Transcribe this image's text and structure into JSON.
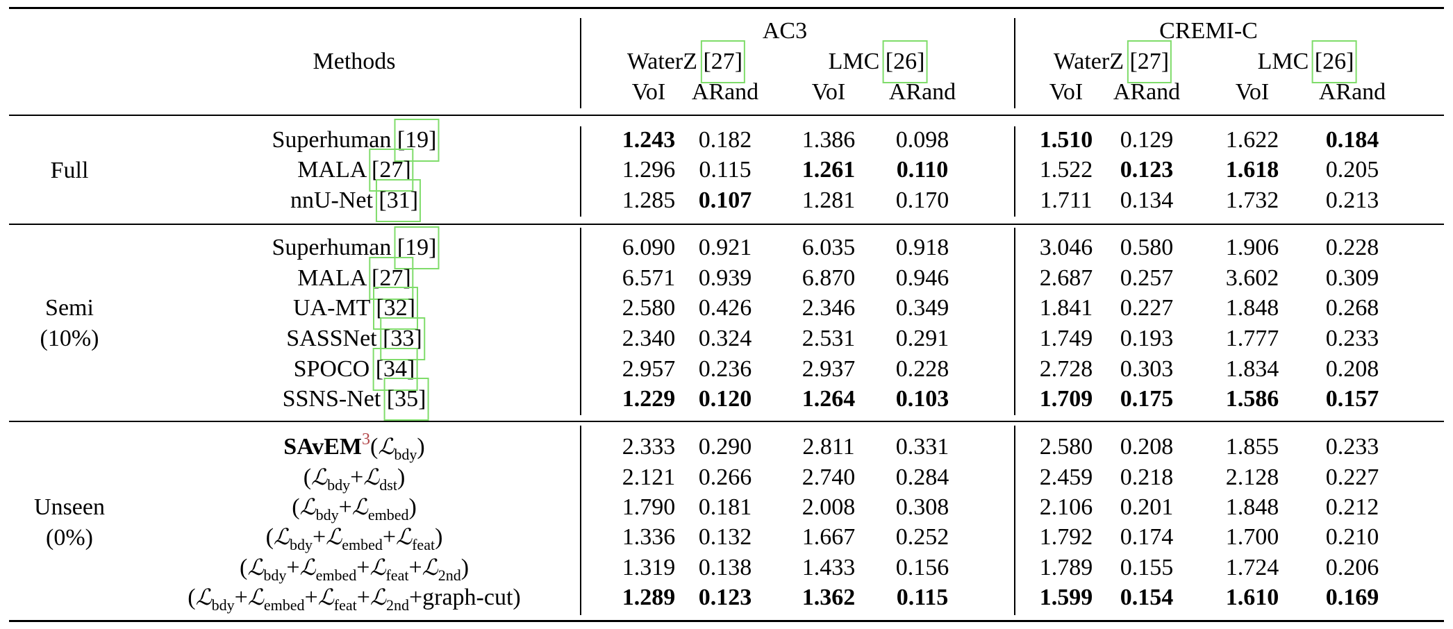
{
  "header": {
    "methods": "Methods",
    "groups": [
      {
        "name": "AC3",
        "subgroups": [
          {
            "name": "WaterZ",
            "cite": "27",
            "metrics": [
              "VoI",
              "ARand"
            ]
          },
          {
            "name": "LMC",
            "cite": "26",
            "metrics": [
              "VoI",
              "ARand"
            ]
          }
        ]
      },
      {
        "name": "CREMI-C",
        "subgroups": [
          {
            "name": "WaterZ",
            "cite": "27",
            "metrics": [
              "VoI",
              "ARand"
            ]
          },
          {
            "name": "LMC",
            "cite": "26",
            "metrics": [
              "VoI",
              "ARand"
            ]
          }
        ]
      }
    ]
  },
  "sections": [
    {
      "label": [
        "Full"
      ],
      "rows": [
        {
          "name": "Superhuman",
          "cite": "19",
          "values": [
            "1.243",
            "0.182",
            "1.386",
            "0.098",
            "1.510",
            "0.129",
            "1.622",
            "0.184"
          ],
          "bold": [
            0,
            4,
            7
          ]
        },
        {
          "name": "MALA",
          "cite": "27",
          "values": [
            "1.296",
            "0.115",
            "1.261",
            "0.110",
            "1.522",
            "0.123",
            "1.618",
            "0.205"
          ],
          "bold": [
            2,
            3,
            5,
            6
          ]
        },
        {
          "name": "nnU-Net",
          "cite": "31",
          "values": [
            "1.285",
            "0.107",
            "1.281",
            "0.170",
            "1.711",
            "0.134",
            "1.732",
            "0.213"
          ],
          "bold": [
            1
          ]
        }
      ]
    },
    {
      "label": [
        "Semi",
        "(10%)"
      ],
      "rows": [
        {
          "name": "Superhuman",
          "cite": "19",
          "values": [
            "6.090",
            "0.921",
            "6.035",
            "0.918",
            "3.046",
            "0.580",
            "1.906",
            "0.228"
          ],
          "bold": []
        },
        {
          "name": "MALA",
          "cite": "27",
          "values": [
            "6.571",
            "0.939",
            "6.870",
            "0.946",
            "2.687",
            "0.257",
            "3.602",
            "0.309"
          ],
          "bold": []
        },
        {
          "name": "UA-MT",
          "cite": "32",
          "values": [
            "2.580",
            "0.426",
            "2.346",
            "0.349",
            "1.841",
            "0.227",
            "1.848",
            "0.268"
          ],
          "bold": []
        },
        {
          "name": "SASSNet",
          "cite": "33",
          "values": [
            "2.340",
            "0.324",
            "2.531",
            "0.291",
            "1.749",
            "0.193",
            "1.777",
            "0.233"
          ],
          "bold": []
        },
        {
          "name": "SPOCO",
          "cite": "34",
          "values": [
            "2.957",
            "0.236",
            "2.937",
            "0.228",
            "2.728",
            "0.303",
            "1.834",
            "0.208"
          ],
          "bold": []
        },
        {
          "name": "SSNS-Net",
          "cite": "35",
          "values": [
            "1.229",
            "0.120",
            "1.264",
            "0.103",
            "1.709",
            "0.175",
            "1.586",
            "0.157"
          ],
          "bold": [
            0,
            1,
            2,
            3,
            4,
            5,
            6,
            7
          ]
        }
      ]
    },
    {
      "label": [
        "Unseen",
        "(0%)"
      ],
      "rows": [
        {
          "name": "SAvEM",
          "sup": "3",
          "terms": [
            "bdy"
          ],
          "tail": "",
          "values": [
            "2.333",
            "0.290",
            "2.811",
            "0.331",
            "2.580",
            "0.208",
            "1.855",
            "0.233"
          ],
          "bold": []
        },
        {
          "name": "",
          "terms": [
            "bdy",
            "dst"
          ],
          "tail": "",
          "values": [
            "2.121",
            "0.266",
            "2.740",
            "0.284",
            "2.459",
            "0.218",
            "2.128",
            "0.227"
          ],
          "bold": []
        },
        {
          "name": "",
          "terms": [
            "bdy",
            "embed"
          ],
          "tail": "",
          "values": [
            "1.790",
            "0.181",
            "2.008",
            "0.308",
            "2.106",
            "0.201",
            "1.848",
            "0.212"
          ],
          "bold": []
        },
        {
          "name": "",
          "terms": [
            "bdy",
            "embed",
            "feat"
          ],
          "tail": "",
          "values": [
            "1.336",
            "0.132",
            "1.667",
            "0.252",
            "1.792",
            "0.174",
            "1.700",
            "0.210"
          ],
          "bold": []
        },
        {
          "name": "",
          "terms": [
            "bdy",
            "embed",
            "feat",
            "2nd"
          ],
          "tail": "",
          "values": [
            "1.319",
            "0.138",
            "1.433",
            "0.156",
            "1.789",
            "0.155",
            "1.724",
            "0.206"
          ],
          "bold": []
        },
        {
          "name": "",
          "terms": [
            "bdy",
            "embed",
            "feat",
            "2nd"
          ],
          "tail": "graph-cut",
          "values": [
            "1.289",
            "0.123",
            "1.362",
            "0.115",
            "1.599",
            "0.154",
            "1.610",
            "0.169"
          ],
          "bold": [
            0,
            1,
            2,
            3,
            4,
            5,
            6,
            7
          ]
        }
      ]
    }
  ]
}
